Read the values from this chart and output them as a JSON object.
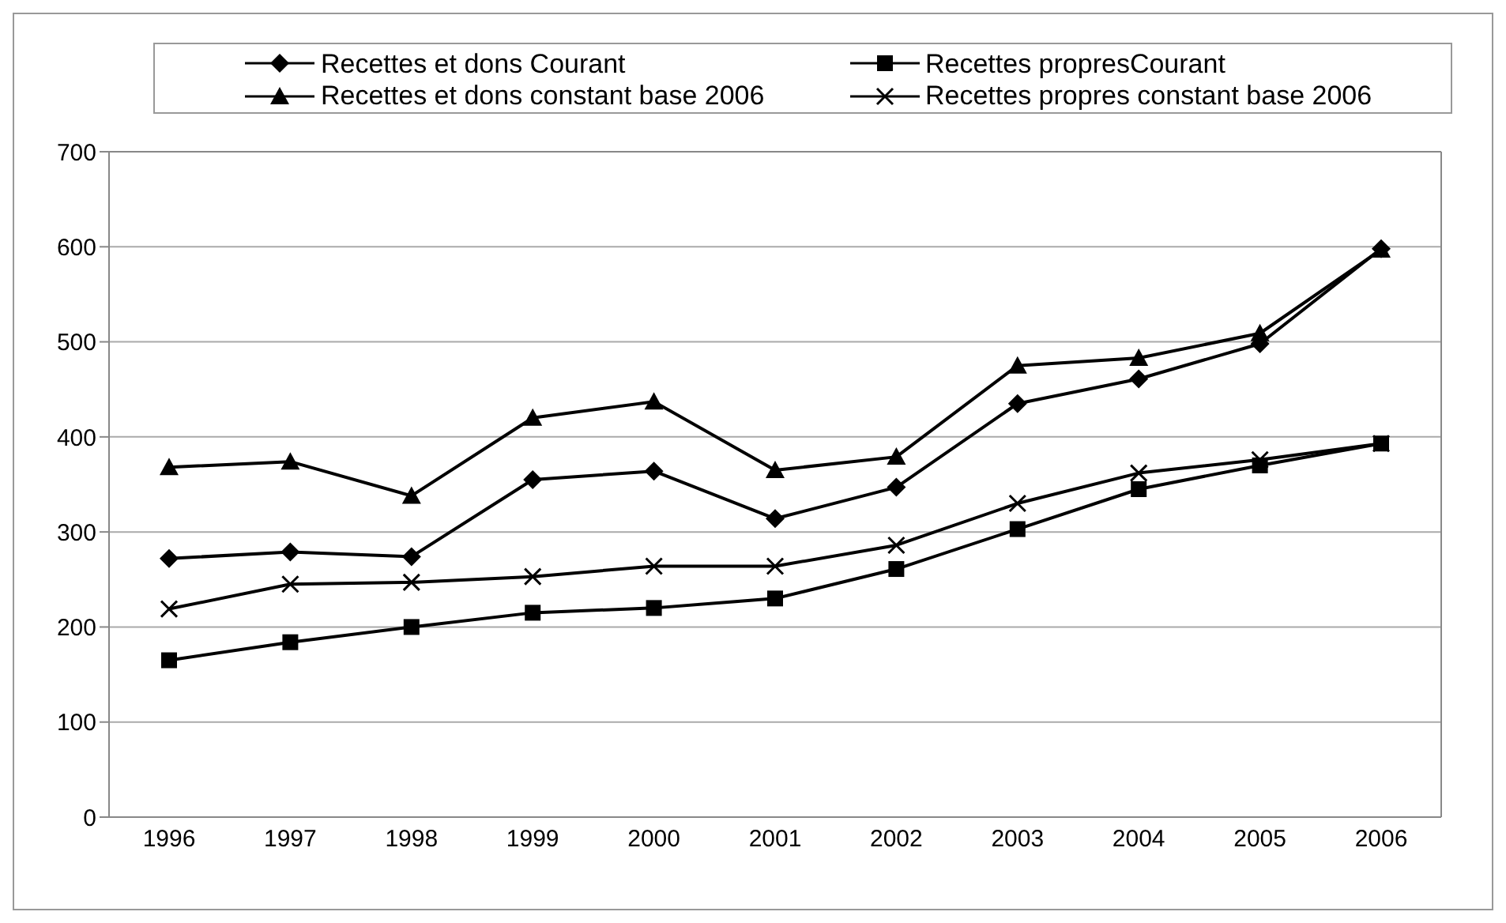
{
  "chart_data": {
    "type": "line",
    "categories": [
      "1996",
      "1997",
      "1998",
      "1999",
      "2000",
      "2001",
      "2002",
      "2003",
      "2004",
      "2005",
      "2006"
    ],
    "series": [
      {
        "name": "Recettes et dons Courant",
        "color": "#000000",
        "marker": "diamond",
        "values": [
          272,
          279,
          274,
          355,
          364,
          314,
          347,
          435,
          461,
          498,
          598
        ]
      },
      {
        "name": "Recettes propresCourant",
        "color": "#000000",
        "marker": "square",
        "values": [
          165,
          184,
          200,
          215,
          220,
          230,
          261,
          303,
          345,
          370,
          393
        ]
      },
      {
        "name": "Recettes et dons constant base 2006",
        "color": "#000000",
        "marker": "triangle",
        "values": [
          368,
          374,
          338,
          420,
          437,
          365,
          379,
          475,
          483,
          509,
          597
        ]
      },
      {
        "name": "Recettes propres constant base 2006",
        "color": "#000000",
        "marker": "cross",
        "values": [
          219,
          245,
          247,
          253,
          264,
          264,
          286,
          330,
          362,
          376,
          393
        ]
      }
    ],
    "ylim": [
      0,
      700
    ],
    "yticks": [
      0,
      100,
      200,
      300,
      400,
      500,
      600,
      700
    ],
    "grid": "y",
    "legend": "top",
    "line_style": "solid"
  }
}
